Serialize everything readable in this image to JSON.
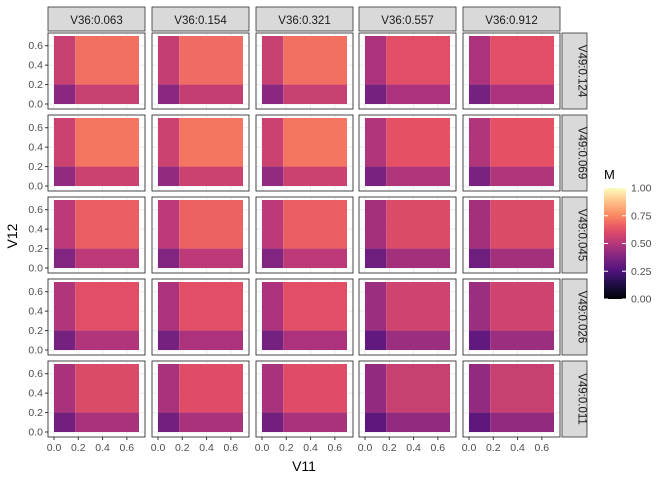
{
  "chart_data": {
    "type": "heatmap",
    "title": "",
    "xlabel": "V11",
    "ylabel": "V12",
    "xlim": [
      0,
      0.7
    ],
    "ylim": [
      0,
      0.7
    ],
    "x_ticks": [
      "0.0",
      "0.2",
      "0.4",
      "0.6"
    ],
    "x_tick_values": [
      0,
      0.2,
      0.4,
      0.6
    ],
    "y_ticks": [
      "0.0",
      "0.2",
      "0.4",
      "0.6"
    ],
    "y_tick_values": [
      0,
      0.2,
      0.4,
      0.6
    ],
    "x_breaks": [
      0,
      0.175,
      0.7
    ],
    "y_breaks": [
      0,
      0.2,
      0.7
    ],
    "grid": true,
    "facet_columns": [
      "V36:0.063",
      "V36:0.154",
      "V36:0.321",
      "V36:0.557",
      "V36:0.912"
    ],
    "facet_rows": [
      "V49:0.124",
      "V49:0.069",
      "V49:0.045",
      "V49:0.026",
      "V49:0.011"
    ],
    "cell_values": [
      [
        [
          [
            0.4,
            0.55
          ],
          [
            0.55,
            0.7
          ]
        ],
        [
          [
            0.4,
            0.54
          ],
          [
            0.54,
            0.69
          ]
        ],
        [
          [
            0.4,
            0.55
          ],
          [
            0.55,
            0.7
          ]
        ],
        [
          [
            0.35,
            0.48
          ],
          [
            0.48,
            0.62
          ]
        ],
        [
          [
            0.35,
            0.48
          ],
          [
            0.48,
            0.62
          ]
        ]
      ],
      [
        [
          [
            0.42,
            0.56
          ],
          [
            0.56,
            0.71
          ]
        ],
        [
          [
            0.42,
            0.56
          ],
          [
            0.56,
            0.71
          ]
        ],
        [
          [
            0.42,
            0.56
          ],
          [
            0.56,
            0.71
          ]
        ],
        [
          [
            0.36,
            0.49
          ],
          [
            0.49,
            0.63
          ]
        ],
        [
          [
            0.36,
            0.49
          ],
          [
            0.49,
            0.63
          ]
        ]
      ],
      [
        [
          [
            0.38,
            0.52
          ],
          [
            0.52,
            0.66
          ]
        ],
        [
          [
            0.38,
            0.52
          ],
          [
            0.52,
            0.67
          ]
        ],
        [
          [
            0.38,
            0.52
          ],
          [
            0.52,
            0.66
          ]
        ],
        [
          [
            0.33,
            0.46
          ],
          [
            0.46,
            0.6
          ]
        ],
        [
          [
            0.33,
            0.46
          ],
          [
            0.46,
            0.6
          ]
        ]
      ],
      [
        [
          [
            0.35,
            0.49
          ],
          [
            0.49,
            0.62
          ]
        ],
        [
          [
            0.35,
            0.48
          ],
          [
            0.48,
            0.62
          ]
        ],
        [
          [
            0.35,
            0.48
          ],
          [
            0.48,
            0.62
          ]
        ],
        [
          [
            0.3,
            0.44
          ],
          [
            0.44,
            0.57
          ]
        ],
        [
          [
            0.3,
            0.44
          ],
          [
            0.44,
            0.57
          ]
        ]
      ],
      [
        [
          [
            0.34,
            0.47
          ],
          [
            0.47,
            0.6
          ]
        ],
        [
          [
            0.34,
            0.47
          ],
          [
            0.47,
            0.61
          ]
        ],
        [
          [
            0.34,
            0.47
          ],
          [
            0.47,
            0.61
          ]
        ],
        [
          [
            0.29,
            0.42
          ],
          [
            0.42,
            0.55
          ]
        ],
        [
          [
            0.29,
            0.42
          ],
          [
            0.42,
            0.55
          ]
        ]
      ]
    ],
    "legend": {
      "title": "M",
      "position": "right",
      "labels": [
        "1.00",
        "0.75",
        "0.50",
        "0.25",
        "0.00"
      ],
      "values": [
        1.0,
        0.75,
        0.5,
        0.25,
        0.0
      ],
      "colormap": "magma"
    },
    "colors": {
      "strip_fill": "#d9d9d9",
      "panel_border": "#333333",
      "grid": "#ebebeb",
      "axis_text": "#4d4d4d"
    }
  }
}
